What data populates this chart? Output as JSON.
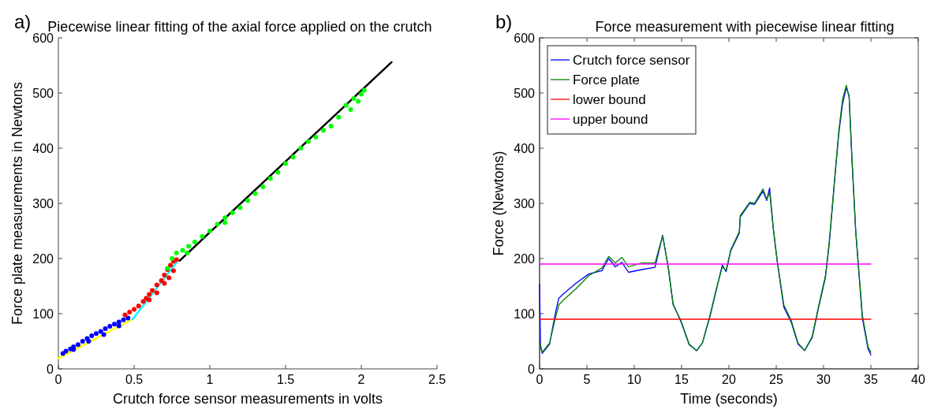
{
  "chart_data": [
    {
      "type": "scatter",
      "title": "Piecewise linear fitting of the axial force applied on the crutch",
      "xlabel": "Crutch force sensor measurements in volts",
      "ylabel": "Force plate measurements in Newtons",
      "annotations": [
        "a)"
      ],
      "xlim": [
        0,
        2.5
      ],
      "xticks": [
        0,
        0.5,
        1,
        1.5,
        2,
        2.5
      ],
      "ylim": [
        0,
        600
      ],
      "yticks": [
        0,
        100,
        200,
        300,
        400,
        500,
        600
      ],
      "series": [
        {
          "marker": "circle",
          "color": "#0000ff",
          "x": [
            0.03,
            0.05,
            0.08,
            0.1,
            0.13,
            0.16,
            0.19,
            0.22,
            0.25,
            0.28,
            0.31,
            0.34,
            0.37,
            0.4,
            0.43,
            0.46,
            0.1,
            0.2,
            0.3,
            0.4
          ],
          "values": [
            28,
            32,
            36,
            40,
            44,
            50,
            55,
            60,
            64,
            68,
            73,
            77,
            81,
            85,
            89,
            92,
            35,
            50,
            62,
            78
          ]
        },
        {
          "marker": "circle",
          "color": "#ff0000",
          "x": [
            0.44,
            0.47,
            0.5,
            0.53,
            0.56,
            0.58,
            0.6,
            0.62,
            0.65,
            0.68,
            0.7,
            0.72,
            0.74,
            0.76,
            0.78,
            0.6,
            0.65,
            0.7,
            0.73,
            0.76
          ],
          "values": [
            98,
            103,
            108,
            114,
            122,
            128,
            135,
            142,
            152,
            160,
            170,
            180,
            188,
            195,
            198,
            125,
            138,
            155,
            165,
            178
          ]
        },
        {
          "marker": "circle",
          "color": "#00ff00",
          "x": [
            0.72,
            0.75,
            0.78,
            0.82,
            0.86,
            0.9,
            0.95,
            1.0,
            1.05,
            1.1,
            1.15,
            1.2,
            1.25,
            1.3,
            1.35,
            1.4,
            1.45,
            1.5,
            1.55,
            1.6,
            1.65,
            1.7,
            1.75,
            1.8,
            1.85,
            1.9,
            1.95,
            2.0,
            2.02,
            1.93,
            1.98,
            1.1,
            0.85
          ],
          "values": [
            182,
            200,
            210,
            215,
            222,
            230,
            240,
            250,
            262,
            274,
            283,
            292,
            305,
            318,
            330,
            345,
            356,
            372,
            384,
            400,
            412,
            420,
            432,
            440,
            456,
            478,
            490,
            498,
            505,
            470,
            485,
            265,
            210
          ]
        },
        {
          "type": "line",
          "color": "#ffff00",
          "x": [
            0,
            0.49
          ],
          "values": [
            19,
            90
          ]
        },
        {
          "type": "line",
          "color": "#00ffff",
          "x": [
            0.49,
            0.78
          ],
          "values": [
            90,
            193
          ]
        },
        {
          "type": "line",
          "color": "#000000",
          "x": [
            0.8,
            2.2
          ],
          "values": [
            196,
            556
          ]
        }
      ]
    },
    {
      "type": "line",
      "title": "Force measurement with piecewise linear fitting",
      "xlabel": "Time (seconds)",
      "ylabel": "Force (Newtons)",
      "annotations": [
        "b)"
      ],
      "xlim": [
        0,
        40
      ],
      "xticks": [
        0,
        5,
        10,
        15,
        20,
        25,
        30,
        35,
        40
      ],
      "ylim": [
        0,
        600
      ],
      "yticks": [
        0,
        100,
        200,
        300,
        400,
        500,
        600
      ],
      "legend": "top left",
      "series": [
        {
          "name": "Crutch force sensor",
          "color": "#0000ff",
          "x": [
            0,
            0.1,
            0.28,
            1.06,
            1.6,
            2.03,
            2.6,
            3.83,
            5.2,
            6.6,
            7.3,
            8.0,
            8.7,
            9.4,
            10.8,
            12.2,
            13.0,
            13.6,
            14.1,
            14.95,
            15.8,
            16.6,
            17.2,
            18.0,
            18.6,
            19.3,
            19.7,
            20.2,
            21.1,
            21.2,
            22.2,
            22.7,
            23.6,
            24.0,
            24.3,
            24.7,
            25.1,
            25.8,
            26.6,
            27.3,
            28.0,
            28.8,
            29.5,
            30.2,
            30.6,
            31.1,
            31.6,
            32.0,
            32.4,
            32.7,
            33.0,
            33.4,
            34.1,
            34.7,
            35.0
          ],
          "values": [
            154,
            40,
            28,
            45,
            95,
            128,
            137,
            155,
            172,
            178,
            200,
            185,
            193,
            175,
            180,
            184,
            242,
            183,
            118,
            85,
            44,
            33,
            47,
            95,
            138,
            188,
            176,
            214,
            246,
            275,
            300,
            298,
            322,
            305,
            328,
            252,
            195,
            112,
            84,
            45,
            33,
            57,
            113,
            166,
            226,
            328,
            425,
            480,
            510,
            495,
            378,
            248,
            92,
            36,
            25
          ]
        },
        {
          "name": "Force plate",
          "color": "#008000",
          "x": [
            0,
            0.28,
            1.06,
            1.6,
            2.03,
            2.6,
            3.83,
            5.2,
            6.6,
            7.3,
            8.0,
            8.7,
            9.4,
            10.8,
            12.2,
            13.0,
            13.6,
            14.1,
            14.95,
            15.8,
            16.6,
            17.2,
            18.0,
            18.6,
            19.3,
            19.7,
            20.2,
            21.1,
            21.2,
            22.2,
            22.7,
            23.6,
            24.0,
            24.3,
            24.7,
            25.1,
            25.8,
            26.6,
            27.3,
            28.0,
            28.8,
            29.5,
            30.2,
            30.6,
            31.1,
            31.6,
            32.0,
            32.4,
            32.7,
            33.0,
            33.4,
            34.1,
            34.7,
            35.0
          ],
          "values": [
            50,
            30,
            47,
            87,
            116,
            126,
            145,
            169,
            183,
            204,
            192,
            202,
            185,
            192,
            192,
            242,
            183,
            116,
            87,
            45,
            33,
            47,
            97,
            140,
            185,
            178,
            216,
            249,
            278,
            302,
            300,
            326,
            307,
            320,
            254,
            197,
            116,
            87,
            47,
            33,
            59,
            116,
            169,
            230,
            330,
            430,
            488,
            514,
            492,
            383,
            250,
            97,
            40,
            30
          ]
        },
        {
          "name": "lower bound",
          "color": "#ff0000",
          "x": [
            0,
            35
          ],
          "values": [
            90,
            90
          ]
        },
        {
          "name": "upper bound",
          "color": "#ff00ff",
          "x": [
            0,
            35
          ],
          "values": [
            190,
            190
          ]
        }
      ]
    }
  ]
}
